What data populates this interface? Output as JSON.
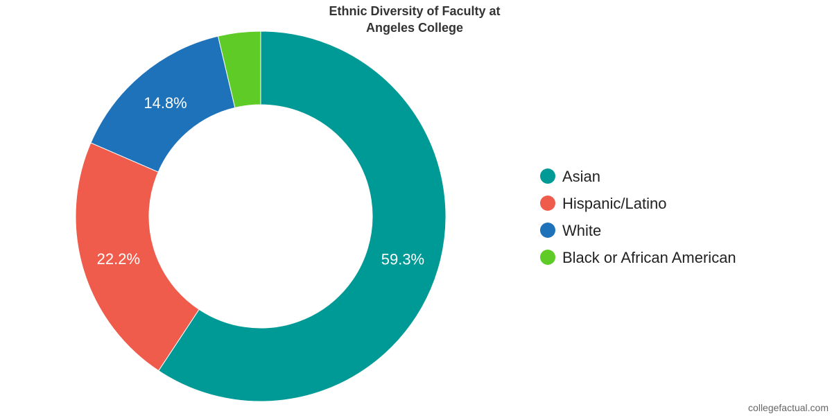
{
  "chart_data": {
    "type": "pie",
    "style": "donut",
    "title_lines": [
      "Ethnic Diversity of Faculty at",
      "Angeles College"
    ],
    "categories": [
      "Asian",
      "Hispanic/Latino",
      "White",
      "Black or African American"
    ],
    "values": [
      59.3,
      22.2,
      14.8,
      3.7
    ],
    "value_labels": [
      "59.3%",
      "22.2%",
      "14.8%",
      ""
    ],
    "colors": [
      "#009a96",
      "#f05c4b",
      "#1d72b9",
      "#5ecb26"
    ],
    "legend_position": "right"
  },
  "credit": "collegefactual.com"
}
